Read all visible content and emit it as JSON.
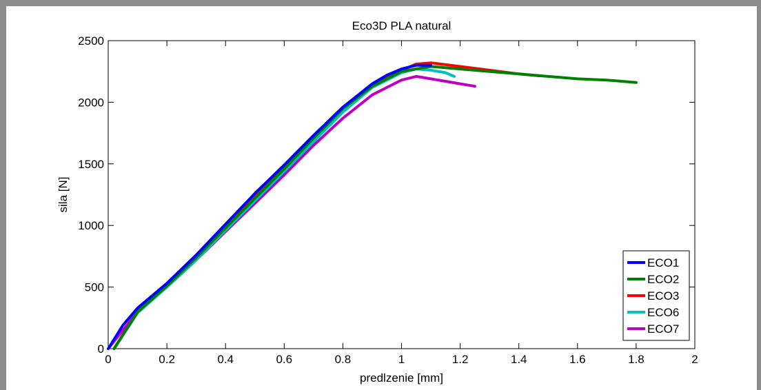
{
  "chart_data": {
    "type": "line",
    "title": "Eco3D PLA natural",
    "xlabel": "predlzenie [mm]",
    "ylabel": "sila [N]",
    "xlim": [
      0,
      2
    ],
    "ylim": [
      0,
      2500
    ],
    "xticks": [
      "0",
      "0.2",
      "0.4",
      "0.6",
      "0.8",
      "1",
      "1.2",
      "1.4",
      "1.6",
      "1.8",
      "2"
    ],
    "yticks": [
      "0",
      "500",
      "1000",
      "1500",
      "2000",
      "2500"
    ],
    "grid": false,
    "legend_position": "bottom-right",
    "series": [
      {
        "name": "ECO1",
        "color": "#0000ff",
        "points": [
          [
            0.0,
            0
          ],
          [
            0.05,
            190
          ],
          [
            0.1,
            330
          ],
          [
            0.2,
            530
          ],
          [
            0.3,
            760
          ],
          [
            0.4,
            1010
          ],
          [
            0.5,
            1260
          ],
          [
            0.6,
            1490
          ],
          [
            0.7,
            1730
          ],
          [
            0.8,
            1960
          ],
          [
            0.9,
            2150
          ],
          [
            0.95,
            2220
          ],
          [
            1.0,
            2270
          ],
          [
            1.05,
            2300
          ],
          [
            1.1,
            2300
          ]
        ]
      },
      {
        "name": "ECO2",
        "color": "#008000",
        "points": [
          [
            0.02,
            0
          ],
          [
            0.1,
            300
          ],
          [
            0.2,
            510
          ],
          [
            0.3,
            740
          ],
          [
            0.4,
            980
          ],
          [
            0.5,
            1220
          ],
          [
            0.6,
            1460
          ],
          [
            0.7,
            1710
          ],
          [
            0.8,
            1950
          ],
          [
            0.9,
            2130
          ],
          [
            1.0,
            2250
          ],
          [
            1.1,
            2290
          ],
          [
            1.2,
            2270
          ],
          [
            1.3,
            2250
          ],
          [
            1.4,
            2230
          ],
          [
            1.5,
            2210
          ],
          [
            1.6,
            2190
          ],
          [
            1.7,
            2180
          ],
          [
            1.8,
            2160
          ]
        ]
      },
      {
        "name": "ECO3",
        "color": "#ff0000",
        "points": [
          [
            0.02,
            0
          ],
          [
            0.1,
            300
          ],
          [
            0.2,
            510
          ],
          [
            0.3,
            740
          ],
          [
            0.4,
            990
          ],
          [
            0.5,
            1230
          ],
          [
            0.6,
            1470
          ],
          [
            0.7,
            1710
          ],
          [
            0.8,
            1950
          ],
          [
            0.9,
            2130
          ],
          [
            1.0,
            2260
          ],
          [
            1.05,
            2310
          ],
          [
            1.1,
            2320
          ],
          [
            1.2,
            2290
          ],
          [
            1.3,
            2260
          ],
          [
            1.4,
            2230
          ],
          [
            1.47,
            2215
          ]
        ]
      },
      {
        "name": "ECO6",
        "color": "#00c0c0",
        "points": [
          [
            0.02,
            0
          ],
          [
            0.1,
            290
          ],
          [
            0.2,
            500
          ],
          [
            0.3,
            720
          ],
          [
            0.4,
            960
          ],
          [
            0.5,
            1200
          ],
          [
            0.6,
            1440
          ],
          [
            0.7,
            1680
          ],
          [
            0.8,
            1920
          ],
          [
            0.9,
            2120
          ],
          [
            1.0,
            2240
          ],
          [
            1.05,
            2270
          ],
          [
            1.1,
            2260
          ],
          [
            1.15,
            2240
          ],
          [
            1.18,
            2210
          ]
        ]
      },
      {
        "name": "ECO7",
        "color": "#c000c0",
        "points": [
          [
            0.0,
            0
          ],
          [
            0.1,
            300
          ],
          [
            0.2,
            500
          ],
          [
            0.3,
            720
          ],
          [
            0.4,
            950
          ],
          [
            0.5,
            1180
          ],
          [
            0.6,
            1410
          ],
          [
            0.7,
            1650
          ],
          [
            0.8,
            1870
          ],
          [
            0.9,
            2060
          ],
          [
            1.0,
            2180
          ],
          [
            1.05,
            2210
          ],
          [
            1.1,
            2190
          ],
          [
            1.2,
            2150
          ],
          [
            1.25,
            2130
          ]
        ]
      }
    ]
  }
}
